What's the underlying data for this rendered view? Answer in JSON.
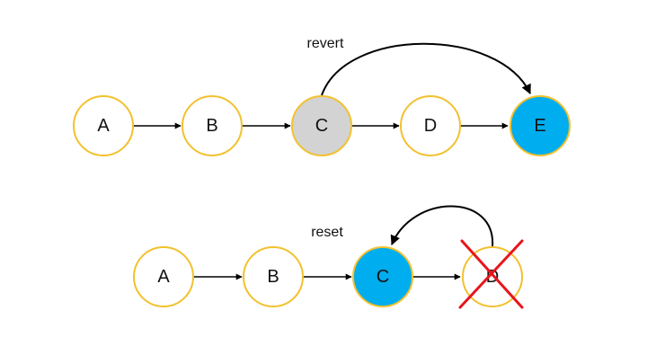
{
  "colors": {
    "node_stroke": "#f2c12e",
    "node_fill": "#ffffff",
    "highlight_gray": "#d4d3d3",
    "highlight_blue": "#00adef",
    "cross_red": "#e8141b"
  },
  "revert_diagram": {
    "caption": "revert",
    "nodes": [
      {
        "label": "A",
        "state": "normal"
      },
      {
        "label": "B",
        "state": "normal"
      },
      {
        "label": "C",
        "state": "source"
      },
      {
        "label": "D",
        "state": "normal"
      },
      {
        "label": "E",
        "state": "new"
      }
    ]
  },
  "reset_diagram": {
    "caption": "reset",
    "nodes": [
      {
        "label": "A",
        "state": "normal"
      },
      {
        "label": "B",
        "state": "normal"
      },
      {
        "label": "C",
        "state": "new"
      },
      {
        "label": "D",
        "state": "removed"
      }
    ]
  }
}
